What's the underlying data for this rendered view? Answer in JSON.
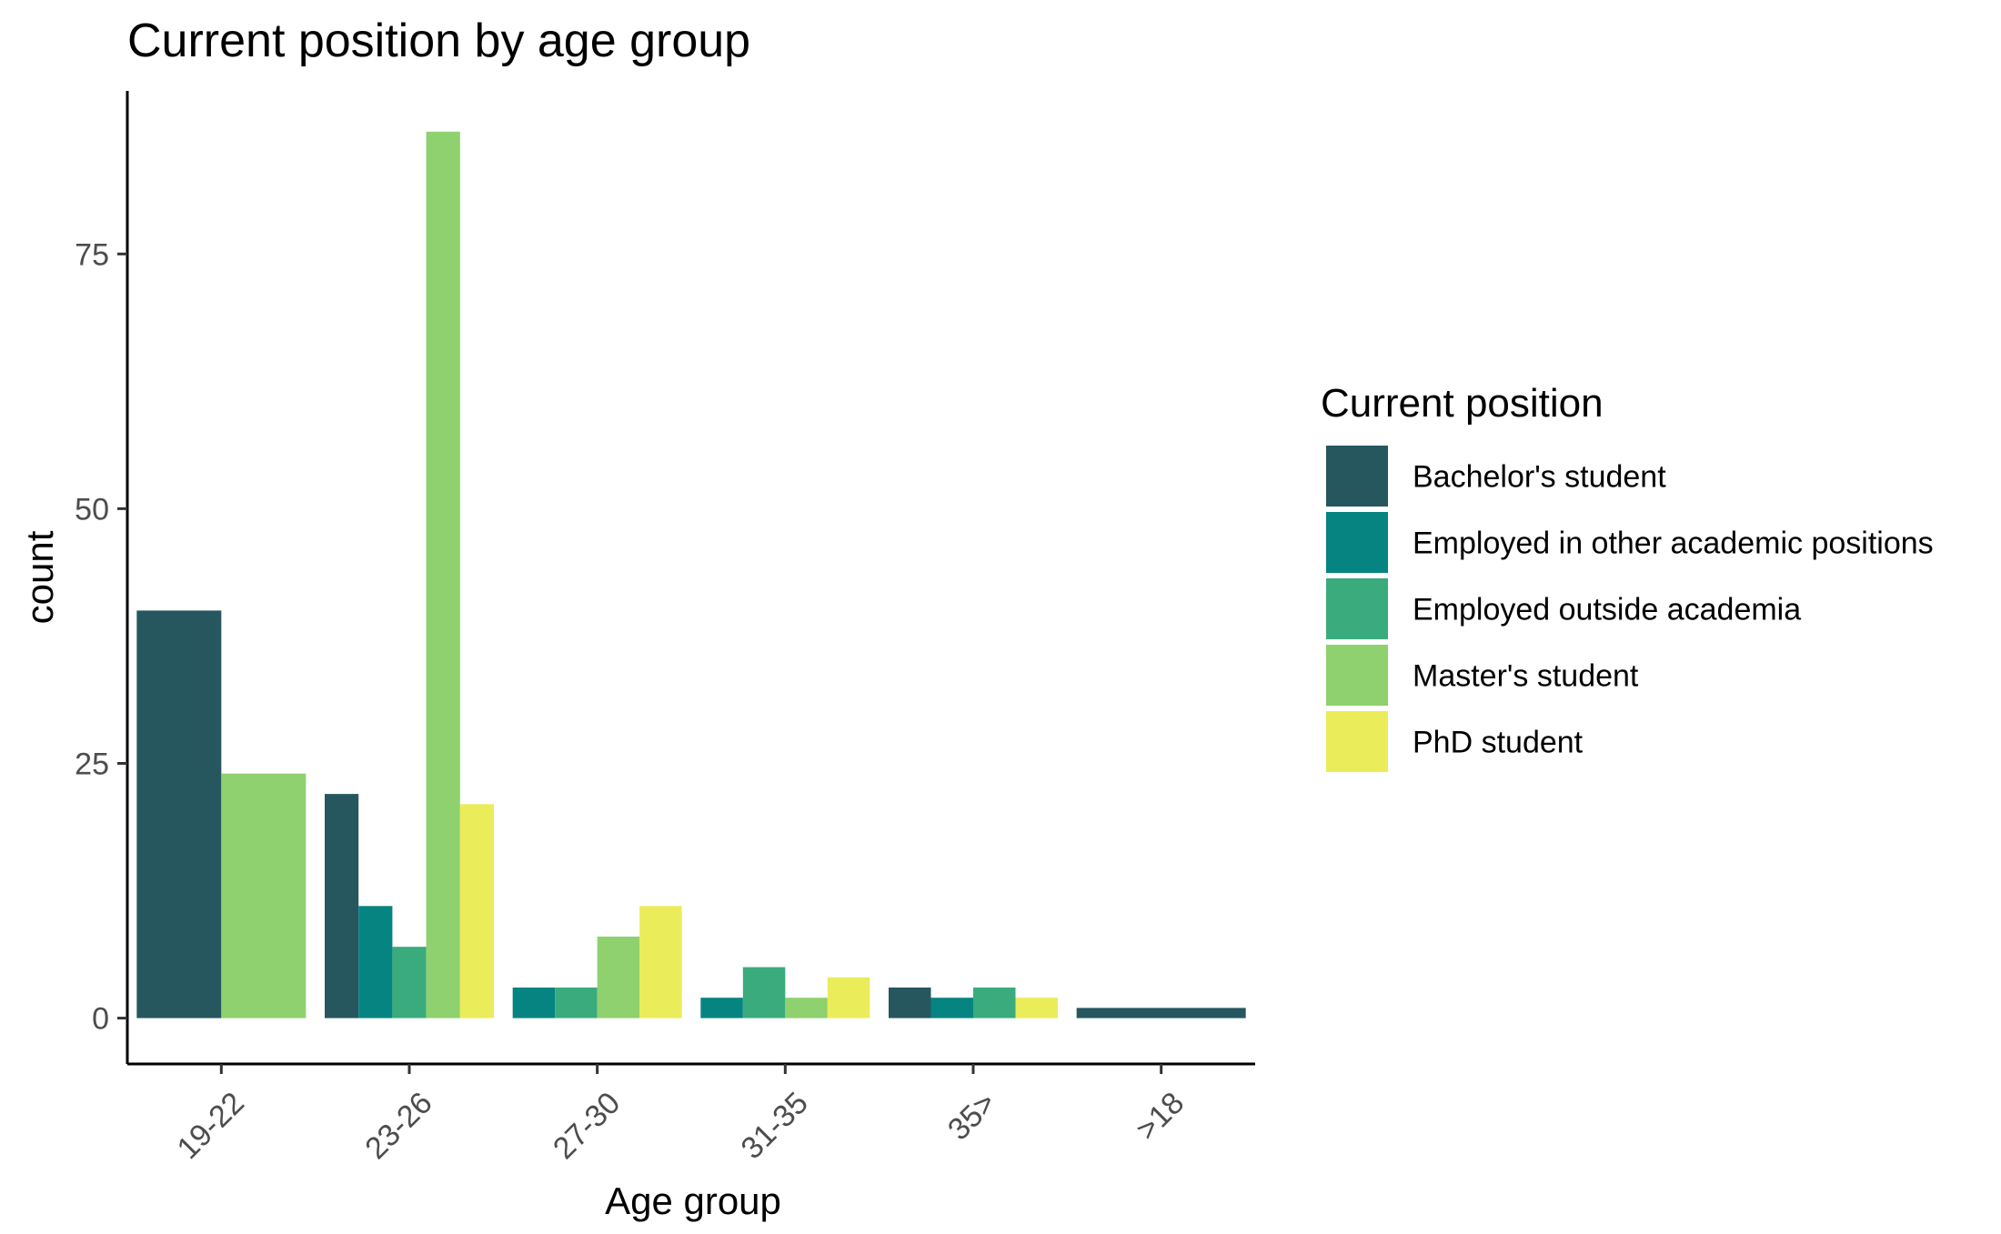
{
  "chart_data": {
    "type": "bar",
    "title": "Current position by age group",
    "xlabel": "Age group",
    "ylabel": "count",
    "ylim": [
      -4.5,
      91
    ],
    "yticks": [
      0,
      25,
      50,
      75
    ],
    "grid": false,
    "legend_position": "right",
    "legend_title": "Current position",
    "categories": [
      "19-22",
      "23-26",
      "27-30",
      "31-35",
      "35>",
      ">18"
    ],
    "series": [
      {
        "name": "Bachelor's student",
        "color": "#26575f",
        "values": [
          40,
          22,
          null,
          null,
          3,
          1
        ]
      },
      {
        "name": "Employed in other academic positions",
        "color": "#058482",
        "values": [
          null,
          11,
          3,
          2,
          2,
          null
        ]
      },
      {
        "name": "Employed outside academia",
        "color": "#3aab7d",
        "values": [
          null,
          7,
          3,
          5,
          3,
          null
        ]
      },
      {
        "name": "Master's student",
        "color": "#8ed16e",
        "values": [
          24,
          87,
          8,
          2,
          null,
          null
        ]
      },
      {
        "name": "PhD student",
        "color": "#ebec5a",
        "values": [
          null,
          21,
          11,
          4,
          2,
          null
        ]
      }
    ]
  }
}
